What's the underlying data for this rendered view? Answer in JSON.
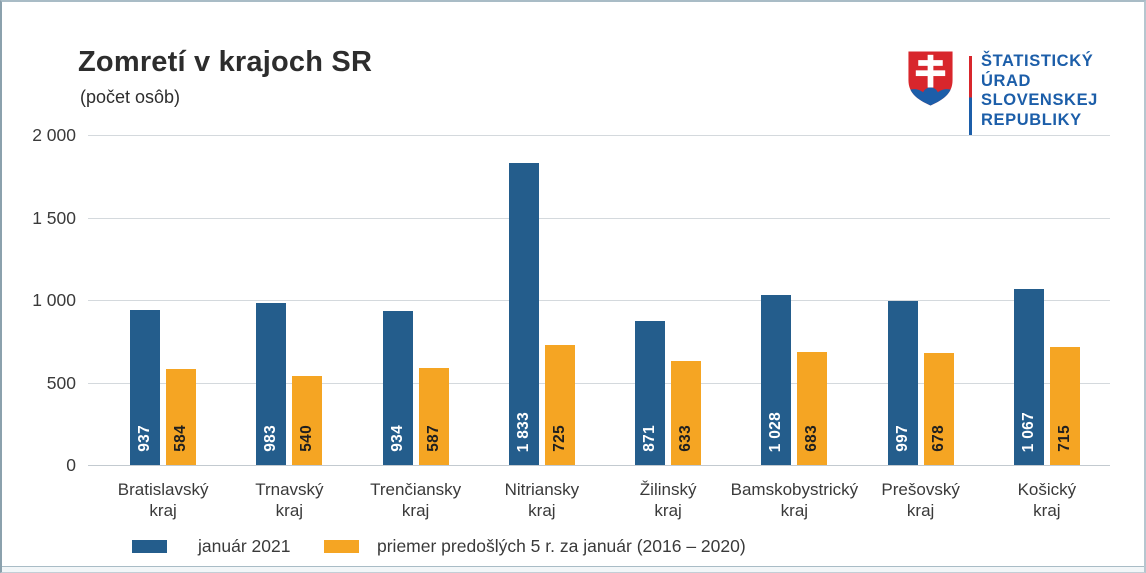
{
  "window": {
    "background": "#ffffff",
    "border_color": "#a9bcc6"
  },
  "header": {
    "title": "Zomretí v krajoch SR",
    "subtitle": "(počet osôb)"
  },
  "logo": {
    "org_lines": [
      "ŠTATISTICKÝ",
      "ÚRAD",
      "SLOVENSKEJ",
      "REPUBLIKY"
    ],
    "text_color": "#1c5ea9",
    "shield_red": "#d8262c",
    "shield_blue": "#1c5ea9"
  },
  "chart_data": {
    "type": "bar",
    "title": "Zomretí v krajoch SR",
    "unit_label": "(počet osôb)",
    "categories": [
      "Bratislavský kraj",
      "Trnavský kraj",
      "Trenčiansky kraj",
      "Nitriansky kraj",
      "Žilinský kraj",
      "Bamskobystrický kraj",
      "Prešovský kraj",
      "Košický kraj"
    ],
    "series": [
      {
        "name": "január 2021",
        "color": "#245d8c",
        "label_color": "#ffffff",
        "values": [
          937,
          983,
          934,
          1833,
          871,
          1028,
          997,
          1067
        ],
        "value_labels": [
          "937",
          "983",
          "934",
          "1 833",
          "871",
          "1 028",
          "997",
          "1 067"
        ]
      },
      {
        "name": "priemer predošlých 5 r. za január (2016 – 2020)",
        "color": "#f5a523",
        "label_color": "#1f1f1f",
        "values": [
          584,
          540,
          587,
          725,
          633,
          683,
          678,
          715
        ],
        "value_labels": [
          "584",
          "540",
          "587",
          "725",
          "633",
          "683",
          "678",
          "715"
        ]
      }
    ],
    "y_axis": {
      "min": 0,
      "max": 2000,
      "tick_values": [
        2000,
        1500,
        1000,
        500,
        0
      ],
      "tick_labels": [
        "2 000",
        "1 500",
        "1 000",
        "500",
        "0"
      ]
    },
    "grid": true,
    "legend_position": "bottom"
  }
}
